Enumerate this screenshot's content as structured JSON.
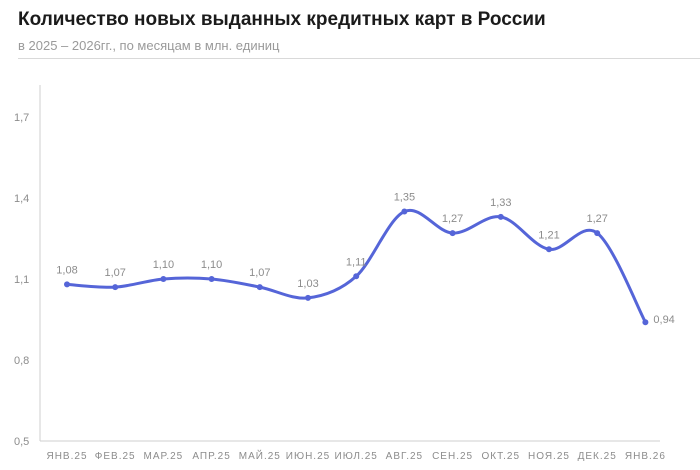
{
  "chart_data": {
    "type": "line",
    "title": "Количество новых выданных кредитных карт в России",
    "subtitle": "в 2025 – 2026гг., по месяцам в млн. единиц",
    "categories": [
      "ЯНВ.25",
      "ФЕВ.25",
      "МАР.25",
      "АПР.25",
      "МАЙ.25",
      "ИЮН.25",
      "ИЮЛ.25",
      "АВГ.25",
      "СЕН.25",
      "ОКТ.25",
      "НОЯ.25",
      "ДЕК.25",
      "ЯНВ.26"
    ],
    "values": [
      1.08,
      1.07,
      1.1,
      1.1,
      1.07,
      1.03,
      1.11,
      1.35,
      1.27,
      1.33,
      1.21,
      1.27,
      0.94
    ],
    "data_labels": [
      "1,08",
      "1,07",
      "1,10",
      "1,10",
      "1,07",
      "1,03",
      "1,11",
      "1,35",
      "1,27",
      "1,33",
      "1,21",
      "1,27",
      "0,94"
    ],
    "yticks": [
      0.5,
      0.8,
      1.1,
      1.4,
      1.7
    ],
    "ytick_labels": [
      "0,5",
      "0,8",
      "1,1",
      "1,4",
      "1,7"
    ],
    "ylim": [
      0.5,
      1.7
    ],
    "grid": false,
    "color": "#5565d8"
  }
}
